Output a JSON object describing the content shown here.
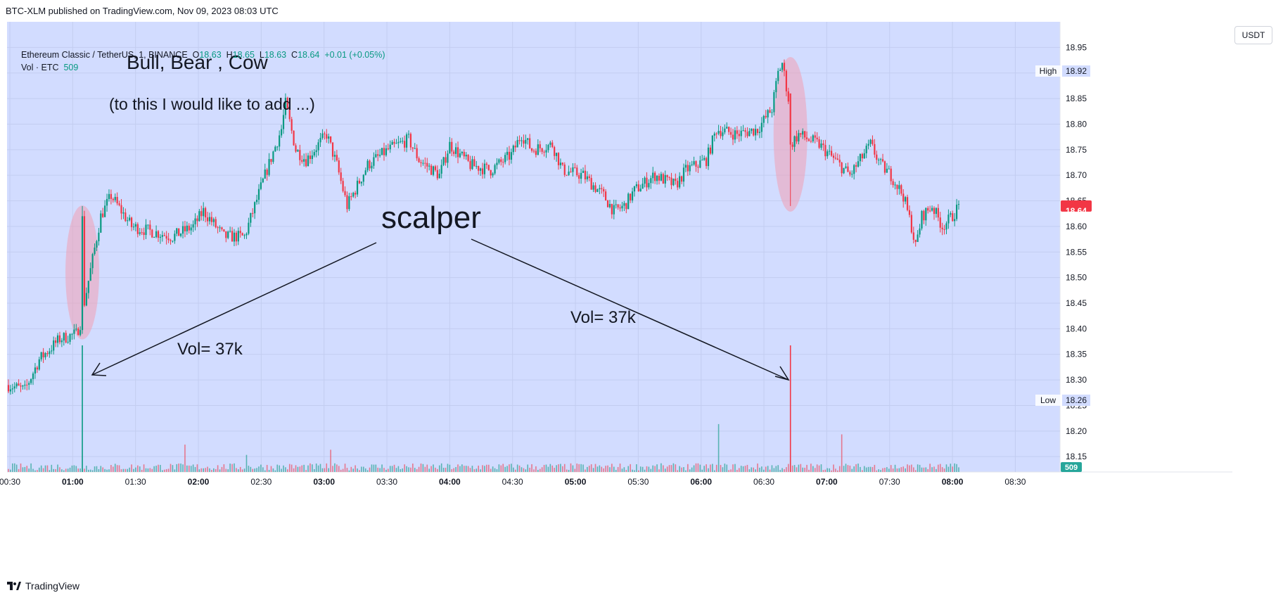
{
  "header": {
    "published_text": "BTC-XLM published on TradingView.com, Nov 09, 2023 08:03 UTC"
  },
  "legend": {
    "symbol": "Ethereum Classic / TetherUS, 1, BINANCE",
    "o_label": "O",
    "o_value": "18.63",
    "h_label": "H",
    "h_value": "18.65",
    "l_label": "L",
    "l_value": "18.63",
    "c_label": "C",
    "c_value": "18.64",
    "change": "+0.01 (+0.05%)",
    "vol_label": "Vol · ETC",
    "vol_value": "509"
  },
  "currency_button": "USDT",
  "annotations": {
    "title": "Bull, Bear , Cow",
    "subtitle": "(to this I would like to add ...)",
    "scalper": "scalper",
    "vol_left": "Vol= 37k",
    "vol_right": "Vol= 37k"
  },
  "price_labels": {
    "high_label": "High",
    "high_value": "18.92",
    "low_label": "Low",
    "low_value": "18.26",
    "last_value": "18.64",
    "volume_value": "509"
  },
  "footer": {
    "brand": "TradingView",
    "logo_icon": "tradingview-logo-icon"
  },
  "colors": {
    "background": "#d2dcff",
    "up": "#089981",
    "down": "#f23645",
    "ellipse": "#f0a0b4",
    "last_price": "#f23645",
    "volume_badge": "#26a69a"
  },
  "chart_data": {
    "type": "candlestick",
    "y_ticks": [
      "18.15",
      "18.20",
      "18.25",
      "18.30",
      "18.35",
      "18.40",
      "18.45",
      "18.50",
      "18.55",
      "18.60",
      "18.65",
      "18.70",
      "18.75",
      "18.80",
      "18.85",
      "18.90",
      "18.95"
    ],
    "x_ticks": [
      "00:30",
      "01:00",
      "01:30",
      "02:00",
      "02:30",
      "03:00",
      "03:30",
      "04:00",
      "04:30",
      "05:00",
      "05:30",
      "06:00",
      "06:30",
      "07:00",
      "07:30",
      "08:00",
      "08:30"
    ],
    "x_bold": [
      "01:00",
      "02:00",
      "03:00",
      "04:00",
      "05:00",
      "06:00",
      "07:00",
      "08:00"
    ],
    "ylim": [
      18.12,
      19.0
    ],
    "grid": true,
    "price_anchors": [
      [
        0,
        18.29
      ],
      [
        8,
        18.28
      ],
      [
        15,
        18.34
      ],
      [
        25,
        18.38
      ],
      [
        33,
        18.39
      ],
      [
        35,
        18.41
      ],
      [
        45,
        18.62
      ],
      [
        50,
        18.66
      ],
      [
        60,
        18.6
      ],
      [
        80,
        18.58
      ],
      [
        90,
        18.6
      ],
      [
        95,
        18.63
      ],
      [
        105,
        18.58
      ],
      [
        115,
        18.58
      ],
      [
        125,
        18.7
      ],
      [
        133,
        18.79
      ],
      [
        135,
        18.84
      ],
      [
        140,
        18.75
      ],
      [
        145,
        18.73
      ],
      [
        155,
        18.78
      ],
      [
        160,
        18.72
      ],
      [
        165,
        18.64
      ],
      [
        175,
        18.72
      ],
      [
        185,
        18.75
      ],
      [
        195,
        18.77
      ],
      [
        200,
        18.73
      ],
      [
        210,
        18.7
      ],
      [
        215,
        18.76
      ],
      [
        225,
        18.72
      ],
      [
        235,
        18.71
      ],
      [
        245,
        18.74
      ],
      [
        250,
        18.78
      ],
      [
        255,
        18.75
      ],
      [
        265,
        18.76
      ],
      [
        270,
        18.71
      ],
      [
        280,
        18.7
      ],
      [
        290,
        18.66
      ],
      [
        295,
        18.63
      ],
      [
        300,
        18.64
      ],
      [
        305,
        18.67
      ],
      [
        315,
        18.7
      ],
      [
        325,
        18.68
      ],
      [
        330,
        18.71
      ],
      [
        340,
        18.73
      ],
      [
        345,
        18.79
      ],
      [
        355,
        18.78
      ],
      [
        365,
        18.79
      ],
      [
        372,
        18.83
      ],
      [
        375,
        18.9
      ],
      [
        377,
        18.92
      ],
      [
        380,
        18.85
      ],
      [
        381,
        18.76
      ],
      [
        385,
        18.78
      ],
      [
        390,
        18.77
      ],
      [
        395,
        18.76
      ],
      [
        400,
        18.74
      ],
      [
        405,
        18.72
      ],
      [
        410,
        18.7
      ],
      [
        415,
        18.73
      ],
      [
        420,
        18.76
      ],
      [
        425,
        18.72
      ],
      [
        430,
        18.7
      ],
      [
        436,
        18.66
      ],
      [
        440,
        18.6
      ],
      [
        442,
        18.56
      ],
      [
        445,
        18.62
      ],
      [
        450,
        18.64
      ],
      [
        455,
        18.6
      ],
      [
        460,
        18.62
      ],
      [
        463,
        18.64
      ]
    ],
    "volume": {
      "spikes": [
        [
          36,
          37000
        ],
        [
          381,
          37000
        ],
        [
          346,
          14000
        ],
        [
          406,
          11000
        ],
        [
          86,
          8000
        ],
        [
          157,
          6500
        ],
        [
          116,
          5000
        ]
      ],
      "baseline": 1500
    },
    "highlight_ellipses": [
      {
        "label": "spike-1",
        "candle": 36,
        "price_top": 18.63,
        "price_bottom": 18.39
      },
      {
        "label": "spike-2",
        "candle": 381,
        "price_top": 18.92,
        "price_bottom": 18.64
      }
    ]
  }
}
